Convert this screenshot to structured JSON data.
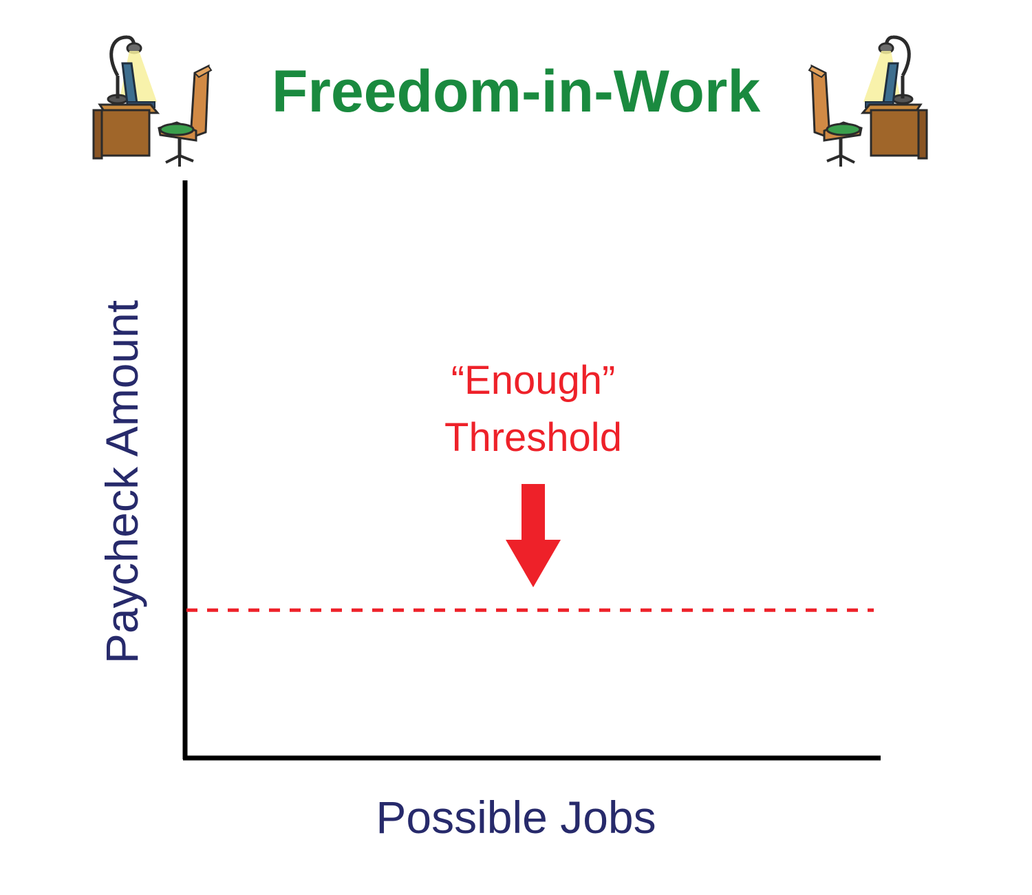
{
  "title": "Freedom-in-Work",
  "colors": {
    "title": "#1a8a3f",
    "axis_label": "#272a6b",
    "threshold": "#ee2129",
    "axis": "#000000"
  },
  "icons": {
    "left": "desk-lamp-chair-icon",
    "right": "desk-lamp-chair-icon"
  },
  "chart_data": {
    "type": "line",
    "title": "Freedom-in-Work",
    "xlabel": "Possible Jobs",
    "ylabel": "Paycheck Amount",
    "grid": false,
    "legend": "none",
    "xlim": [
      0,
      1
    ],
    "ylim": [
      0,
      1
    ],
    "reference_lines": [
      {
        "orientation": "horizontal",
        "y": 0.256,
        "style": "dashed",
        "color": "#ee2129"
      }
    ],
    "annotations": [
      {
        "text_lines": [
          "“Enough”",
          "Threshold"
        ],
        "arrow": "down",
        "color": "#ee2129"
      }
    ]
  }
}
